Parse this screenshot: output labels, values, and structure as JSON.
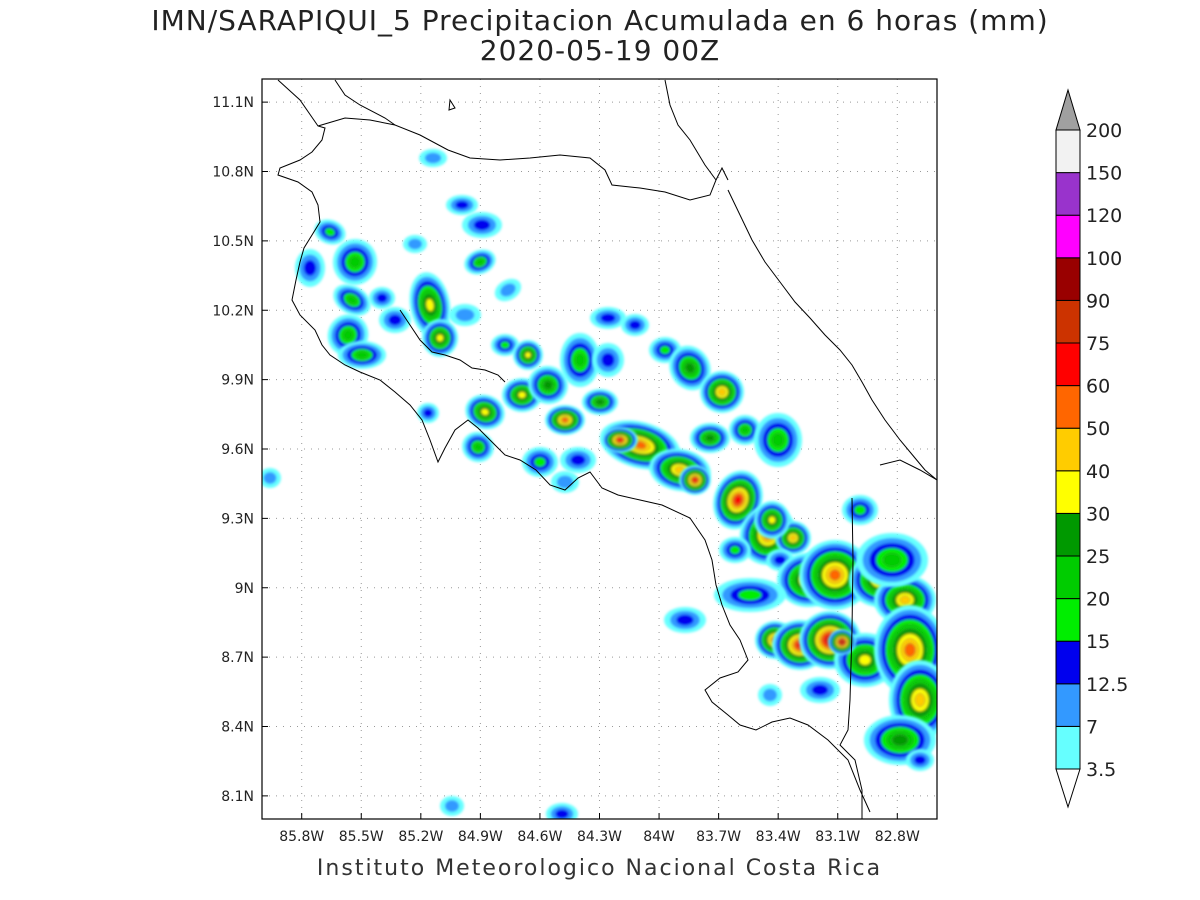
{
  "title": {
    "line1": "IMN/SARAPIQUI_5 Precipitacion Acumulada en 6 horas (mm)",
    "line2": "2020-05-19 00Z"
  },
  "footer": "Instituto Meteorologico Nacional Costa Rica",
  "map": {
    "lon_range": [
      -86.0,
      -82.6
    ],
    "lat_range": [
      8.0,
      11.2
    ],
    "lat_ticks": [
      "11.1N",
      "10.8N",
      "10.5N",
      "10.2N",
      "9.9N",
      "9.6N",
      "9.3N",
      "9N",
      "8.7N",
      "8.4N",
      "8.1N"
    ],
    "lat_tick_values": [
      11.1,
      10.8,
      10.5,
      10.2,
      9.9,
      9.6,
      9.3,
      9.0,
      8.7,
      8.4,
      8.1
    ],
    "lon_ticks": [
      "85.8W",
      "85.5W",
      "85.2W",
      "84.9W",
      "84.6W",
      "84.3W",
      "84W",
      "83.7W",
      "83.4W",
      "83.1W",
      "82.8W"
    ],
    "lon_tick_values": [
      -85.8,
      -85.5,
      -85.2,
      -84.9,
      -84.6,
      -84.3,
      -84.0,
      -83.7,
      -83.4,
      -83.1,
      -82.8
    ],
    "grid": "dotted"
  },
  "legend": {
    "labels": [
      "3.5",
      "7",
      "12.5",
      "15",
      "20",
      "25",
      "30",
      "40",
      "50",
      "60",
      "75",
      "90",
      "100",
      "120",
      "150",
      "200"
    ],
    "colors": [
      "#66ffff",
      "#3399ff",
      "#0000ee",
      "#00ee00",
      "#00cc00",
      "#009900",
      "#ffff00",
      "#ffcc00",
      "#ff6600",
      "#ff0000",
      "#cc3300",
      "#990000",
      "#ff00ff",
      "#9933cc",
      "#f2f2f2",
      "#a0a0a0"
    ]
  }
}
